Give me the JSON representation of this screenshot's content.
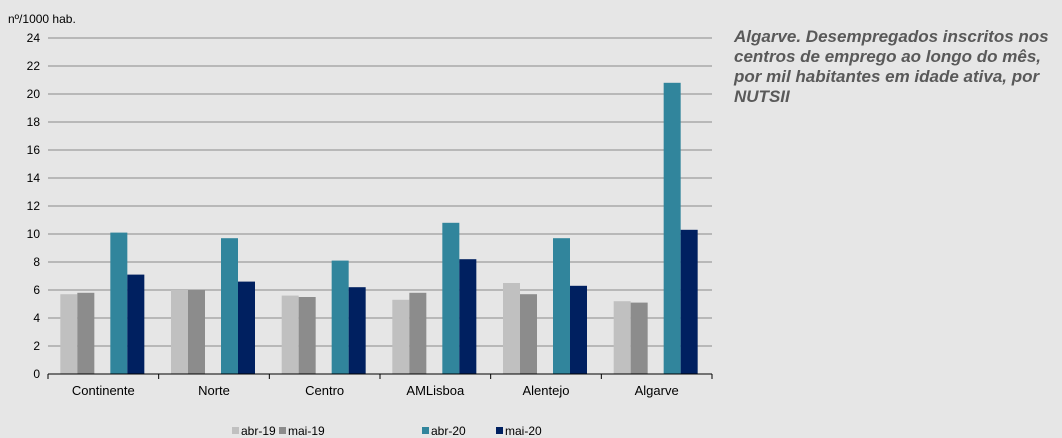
{
  "side_title": "Algarve. Desempregados inscritos nos centros de emprego ao longo do mês, por mil habitantes em idade ativa, por NUTSII",
  "chart_data": {
    "type": "bar",
    "ylabel": "nº/1000 hab.",
    "ylim": [
      0,
      24
    ],
    "yticks": [
      0,
      2,
      4,
      6,
      8,
      10,
      12,
      14,
      16,
      18,
      20,
      22,
      24
    ],
    "grid": true,
    "legend_position": "bottom",
    "categories": [
      "Continente",
      "Norte",
      "Centro",
      "AMLisboa",
      "Alentejo",
      "Algarve"
    ],
    "series": [
      {
        "name": "abr-19",
        "color": "#c0c0c0",
        "values": [
          5.7,
          6.0,
          5.6,
          5.3,
          6.5,
          5.2
        ]
      },
      {
        "name": "mai-19",
        "color": "#8c8c8c",
        "values": [
          5.8,
          6.0,
          5.5,
          5.8,
          5.7,
          5.1
        ]
      },
      {
        "name": "abr-20",
        "color": "#31859c",
        "values": [
          10.1,
          9.7,
          8.1,
          10.8,
          9.7,
          20.8
        ]
      },
      {
        "name": "mai-20",
        "color": "#002060",
        "values": [
          7.1,
          6.6,
          6.2,
          8.2,
          6.3,
          10.3
        ]
      }
    ]
  }
}
